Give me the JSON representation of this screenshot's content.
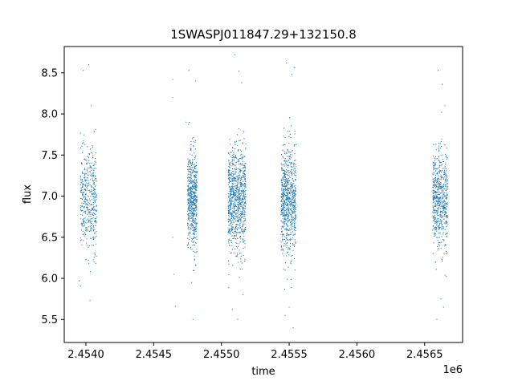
{
  "chart_data": {
    "type": "scatter",
    "title": "1SWASPJ011847.29+132150.8",
    "xlabel": "time",
    "ylabel": "flux",
    "x_offset_label": "1e6",
    "xlim": [
      2.45384,
      2.45678
    ],
    "ylim": [
      5.22,
      8.82
    ],
    "x_ticks": [
      2.454,
      2.4545,
      2.455,
      2.4555,
      2.456,
      2.4565
    ],
    "x_tick_labels": [
      "2.4540",
      "2.4545",
      "2.4550",
      "2.4555",
      "2.4560",
      "2.4565"
    ],
    "y_ticks": [
      5.5,
      6.0,
      6.5,
      7.0,
      7.5,
      8.0,
      8.5
    ],
    "y_tick_labels": [
      "5.5",
      "6.0",
      "6.5",
      "7.0",
      "7.5",
      "8.0",
      "8.5"
    ],
    "grid": false,
    "legend": "none",
    "marker_color": "#1f77b4",
    "series": [
      {
        "clusters": [
          {
            "x_range": [
              2.45396,
              2.45408
            ],
            "y_center": 6.95,
            "y_spread": 0.3,
            "count": 450
          },
          {
            "x_range": [
              2.45475,
              2.45482
            ],
            "y_center": 6.95,
            "y_spread": 0.3,
            "count": 600
          },
          {
            "x_range": [
              2.45505,
              2.45518
            ],
            "y_center": 6.95,
            "y_spread": 0.32,
            "count": 900
          },
          {
            "x_range": [
              2.45544,
              2.45555
            ],
            "y_center": 6.95,
            "y_spread": 0.32,
            "count": 800
          },
          {
            "x_range": [
              2.45656,
              2.45667
            ],
            "y_center": 6.95,
            "y_spread": 0.3,
            "count": 650
          }
        ],
        "outliers": [
          [
            2.45398,
            8.53
          ],
          [
            2.45402,
            8.6
          ],
          [
            2.45404,
            8.1
          ],
          [
            2.45403,
            5.73
          ],
          [
            2.45395,
            5.97
          ],
          [
            2.45406,
            6.2
          ],
          [
            2.45464,
            8.42
          ],
          [
            2.45464,
            8.2
          ],
          [
            2.45464,
            6.5
          ],
          [
            2.45465,
            6.05
          ],
          [
            2.45466,
            5.66
          ],
          [
            2.45476,
            8.53
          ],
          [
            2.45479,
            5.5
          ],
          [
            2.45478,
            5.95
          ],
          [
            2.45474,
            7.9
          ],
          [
            2.45481,
            8.4
          ],
          [
            2.4551,
            8.72
          ],
          [
            2.45513,
            8.52
          ],
          [
            2.45515,
            8.38
          ],
          [
            2.45508,
            5.62
          ],
          [
            2.45512,
            5.5
          ],
          [
            2.45516,
            5.8
          ],
          [
            2.45548,
            8.62
          ],
          [
            2.45552,
            8.48
          ],
          [
            2.45554,
            8.56
          ],
          [
            2.4555,
            5.65
          ],
          [
            2.45553,
            5.4
          ],
          [
            2.45547,
            5.55
          ],
          [
            2.4566,
            8.53
          ],
          [
            2.45663,
            8.36
          ],
          [
            2.45665,
            8.1
          ],
          [
            2.45659,
            5.5
          ],
          [
            2.45662,
            5.75
          ],
          [
            2.45664,
            5.65
          ]
        ]
      }
    ]
  }
}
